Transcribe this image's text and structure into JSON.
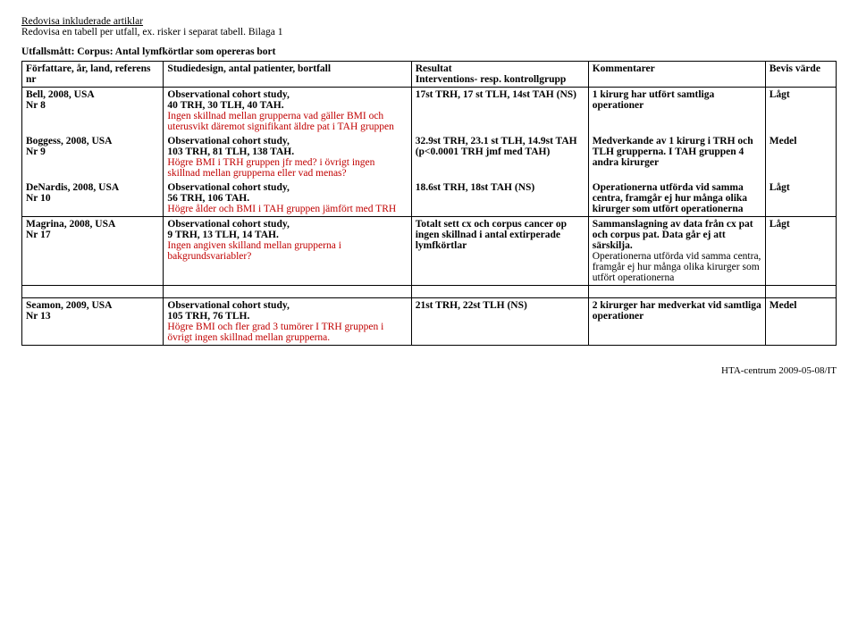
{
  "header": {
    "line1": "Redovisa inkluderade artiklar",
    "line2": "Redovisa en tabell per utfall, ex. risker i separat tabell. Bilaga 1",
    "line3_label": "Utfallsmått:",
    "line3_value": "Corpus: Antal lymfkörtlar som opereras bort"
  },
  "cols": {
    "c1": "Författare, år, land, referens nr",
    "c2": "Studiedesign, antal patienter, bortfall",
    "c3": "Resultat\nInterventions- resp. kontrollgrupp",
    "c4": "Kommentarer",
    "c5": "Bevis värde"
  },
  "rows": [
    {
      "author": "Bell, 2008, USA\nNr 8",
      "design_b": "Observational cohort study,\n40 TRH, 30 TLH, 40 TAH.",
      "design_r": "Ingen skillnad mellan grupperna vad gäller BMI och uterusvikt däremot signifikant äldre pat i TAH gruppen",
      "result": "17st TRH, 17 st TLH, 14st TAH (NS)",
      "comment": "1 kirurg har utfört samtliga operationer",
      "evidence": "Lågt"
    },
    {
      "author": "Boggess, 2008, USA\nNr 9",
      "design_b": "Observational cohort study,\n103 TRH, 81 TLH, 138 TAH.",
      "design_r": "Högre BMI i TRH gruppen jfr med? i övrigt ingen skillnad mellan grupperna eller vad menas?",
      "result": "32.9st TRH, 23.1 st TLH, 14.9st TAH (p<0.0001 TRH jmf med TAH)",
      "comment": "Medverkande av 1 kirurg i TRH och TLH grupperna. I TAH gruppen  4 andra kirurger",
      "evidence": "Medel"
    },
    {
      "author": "DeNardis, 2008, USA\nNr 10",
      "design_b": "Observational cohort study,\n56 TRH, 106 TAH.",
      "design_r": "Högre ålder och BMI i TAH gruppen jämfört med TRH",
      "result": "18.6st TRH, 18st TAH (NS)",
      "comment": "Operationerna utförda vid samma centra, framgår ej hur många olika kirurger som utfört operationerna",
      "evidence": "Lågt"
    },
    {
      "author": "Magrina, 2008, USA\nNr 17",
      "design_b": "Observational cohort study,\n9 TRH, 13 TLH, 14 TAH.",
      "design_r": "Ingen angiven skilland mellan grupperna i bakgrundsvariabler?",
      "result": "Totalt sett cx och corpus cancer op ingen skillnad i antal extirperade lymfkörtlar",
      "comment_b": "Sammanslagning av data från cx pat och corpus pat. Data går ej att särskilja.",
      "comment_p": "Operationerna utförda vid samma centra, framgår ej hur många olika kirurger som utfört operationerna",
      "evidence": "Lågt"
    }
  ],
  "rows2": [
    {
      "author": "Seamon, 2009, USA\nNr 13",
      "design_b": "Observational cohort study,\n105 TRH, 76 TLH.",
      "design_r": "Högre BMI och fler grad 3 tumörer I TRH gruppen i övrigt ingen skillnad mellan grupperna.",
      "result": "21st TRH, 22st TLH (NS)",
      "comment": "2 kirurger har medverkat vid samtliga operationer",
      "evidence": "Medel"
    }
  ],
  "footer": "HTA-centrum 2009-05-08/IT"
}
